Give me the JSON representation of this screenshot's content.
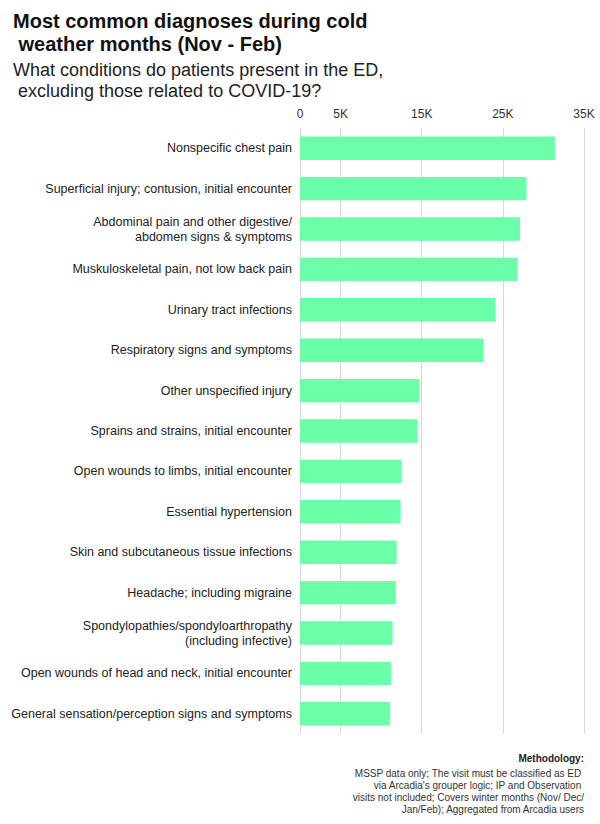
{
  "chart_data": {
    "type": "bar",
    "title": "Most common diagnoses during cold weather months (Nov - Feb)",
    "subtitle": "What conditions do patients present in the ED, excluding those related to COVID-19?",
    "orientation": "horizontal",
    "categories": [
      "Nonspecific chest pain",
      "Superficial injury; contusion, initial encounter",
      "Abdominal pain and other digestive/\nabdomen signs & symptoms",
      "Muskuloskeletal pain, not low back pain",
      "Urinary tract infections",
      "Respiratory signs and symptoms",
      "Other unspecified injury",
      "Sprains and strains, initial encounter",
      "Open wounds to limbs, initial encounter",
      "Essential hypertension",
      "Skin and subcutaneous tissue infections",
      "Headache; including migraine",
      "Spondylopathies/spondyloarthropathy\n(including infective)",
      "Open wounds of head and neck, initial encounter",
      "General sensation/perception signs and symptoms"
    ],
    "values": [
      31400,
      27900,
      27100,
      26800,
      24100,
      22600,
      14700,
      14500,
      12500,
      12400,
      11900,
      11800,
      11400,
      11200,
      11100
    ],
    "color": "#6affa8",
    "xlim": [
      0,
      35000
    ],
    "xticks": [
      0,
      {
        "value": 5000,
        "label": "5K"
      },
      {
        "value": 15000,
        "label": "15K"
      },
      {
        "value": 25000,
        "label": "25K"
      },
      {
        "value": 35000,
        "label": "35K"
      }
    ],
    "grid": true,
    "annotations": [
      "Methodology:",
      "MSSP data only; The visit must be classified as ED via Arcadia's grouper logic; IP and Observation visits not included; Covers winter months (Nov/ Dec/Jan/Feb); Aggregated from Arcadia users"
    ]
  }
}
